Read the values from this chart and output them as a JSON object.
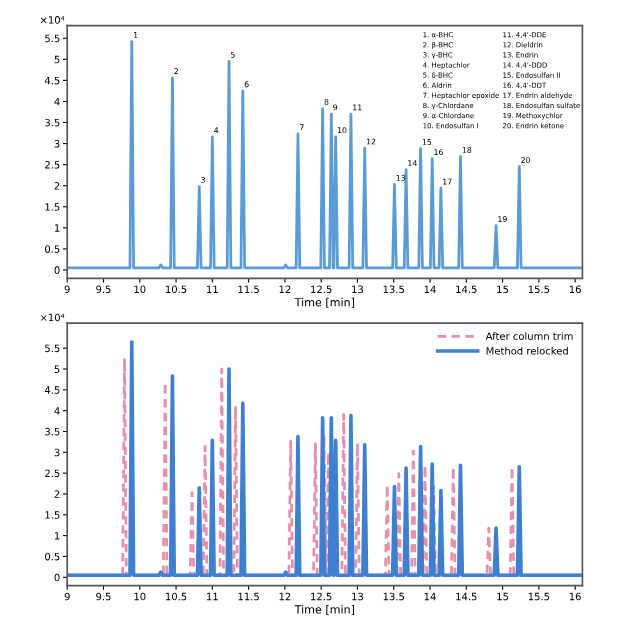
{
  "chart_data": [
    {
      "type": "line",
      "xlabel": "Time [min]",
      "xlim": [
        9,
        16.1
      ],
      "ylim": [
        -0.2,
        5.8
      ],
      "xticks": [
        9,
        9.5,
        10,
        10.5,
        11,
        11.5,
        12,
        12.5,
        13,
        13.5,
        14,
        14.5,
        15,
        15.5,
        16
      ],
      "yticks": [
        0,
        0.5,
        1,
        1.5,
        2,
        2.5,
        3,
        3.5,
        4,
        4.5,
        5,
        5.5
      ],
      "grid": false,
      "legend": false,
      "marker": "none",
      "ylabel": "×10⁴",
      "annotations": [
        "1. α-BHC",
        "2. β-BHC",
        "3. γ-BHC",
        "4. Heptachlor",
        "5. δ-BHC",
        "6. Aldrin",
        "7. Heptachlor epoxide",
        "8. γ-Chlordane",
        "9. α-Chlordane",
        "10. Endosulfan I",
        "11. 4,4'-DDE",
        "12. Dieldrin",
        "13. Endrin",
        "14. 4,4'-DDD",
        "15. Endosulfan II",
        "16. 4,4'-DDT",
        "17. Endrin aldehyde",
        "18. Endosulfan sulfate",
        "19. Methoxychlor",
        "20. Endrin ketone",
        {
          "text": "1",
          "x": 9.89,
          "y": 5.42
        },
        {
          "text": "2",
          "x": 10.45,
          "y": 4.56
        },
        {
          "text": "3",
          "x": 10.82,
          "y": 1.98
        },
        {
          "text": "4",
          "x": 11.0,
          "y": 3.16
        },
        {
          "text": "5",
          "x": 11.23,
          "y": 4.95
        },
        {
          "text": "6",
          "x": 11.42,
          "y": 4.25
        },
        {
          "text": "7",
          "x": 12.18,
          "y": 3.23
        },
        {
          "text": "8",
          "x": 12.52,
          "y": 3.83
        },
        {
          "text": "9",
          "x": 12.64,
          "y": 3.7
        },
        {
          "text": "10",
          "x": 12.7,
          "y": 3.16
        },
        {
          "text": "11",
          "x": 12.91,
          "y": 3.7
        },
        {
          "text": "12",
          "x": 13.1,
          "y": 2.89
        },
        {
          "text": "13",
          "x": 13.51,
          "y": 2.03
        },
        {
          "text": "14",
          "x": 13.67,
          "y": 2.38
        },
        {
          "text": "15",
          "x": 13.87,
          "y": 2.88
        },
        {
          "text": "16",
          "x": 14.03,
          "y": 2.64
        },
        {
          "text": "17",
          "x": 14.15,
          "y": 1.94
        },
        {
          "text": "18",
          "x": 14.42,
          "y": 2.69
        },
        {
          "text": "19",
          "x": 14.91,
          "y": 1.05
        },
        {
          "text": "20",
          "x": 15.23,
          "y": 2.45
        }
      ],
      "series": [
        {
          "color": "#5b9bd5",
          "line_style": "solid",
          "x": [
            9,
            9.865,
            9.89,
            9.915,
            10.265,
            10.29,
            10.315,
            10.425,
            10.45,
            10.475,
            10.795,
            10.82,
            10.845,
            10.975,
            11.0,
            11.025,
            11.205,
            11.23,
            11.255,
            11.395,
            11.42,
            11.445,
            11.985,
            12.01,
            12.035,
            12.155,
            12.18,
            12.205,
            12.495,
            12.52,
            12.545,
            12.615,
            12.64,
            12.665,
            12.675,
            12.7,
            12.725,
            12.885,
            12.91,
            12.935,
            13.075,
            13.1,
            13.125,
            13.485,
            13.51,
            13.535,
            13.645,
            13.67,
            13.695,
            13.845,
            13.87,
            13.895,
            14.005,
            14.03,
            14.055,
            14.125,
            14.15,
            14.175,
            14.395,
            14.42,
            14.445,
            14.885,
            14.91,
            14.935,
            15.205,
            15.23,
            15.255,
            16.1
          ],
          "values": [
            0.05,
            0.05,
            5.42,
            0.05,
            0.05,
            0.12,
            0.05,
            0.05,
            4.56,
            0.05,
            0.05,
            1.98,
            0.05,
            0.05,
            3.16,
            0.05,
            0.05,
            4.95,
            0.05,
            0.05,
            4.25,
            0.05,
            0.05,
            0.12,
            0.05,
            0.05,
            3.23,
            0.05,
            0.05,
            3.83,
            0.05,
            0.05,
            3.7,
            0.05,
            0.05,
            3.16,
            0.05,
            0.05,
            3.7,
            0.05,
            0.05,
            2.89,
            0.05,
            0.05,
            2.03,
            0.05,
            0.05,
            2.38,
            0.05,
            0.05,
            2.88,
            0.05,
            0.05,
            2.64,
            0.05,
            0.05,
            1.94,
            0.05,
            0.05,
            2.69,
            0.05,
            0.05,
            1.05,
            0.05,
            0.05,
            2.45,
            0.05,
            0.05
          ]
        }
      ]
    },
    {
      "type": "line",
      "xlabel": "Time [min]",
      "xlim": [
        9,
        16.1
      ],
      "ylim": [
        -0.2,
        6.1
      ],
      "xticks": [
        9,
        9.5,
        10,
        10.5,
        11,
        11.5,
        12,
        12.5,
        13,
        13.5,
        14,
        14.5,
        15,
        15.5,
        16
      ],
      "yticks": [
        0,
        0.5,
        1,
        1.5,
        2,
        2.5,
        3,
        3.5,
        4,
        4.5,
        5,
        5.5
      ],
      "grid": false,
      "legend": "top right",
      "marker": "none",
      "ylabel": "×10⁴",
      "series": [
        {
          "name": "After column trim",
          "color": "#e58fac",
          "line_style": "dashed",
          "x": [
            9,
            9.765,
            9.79,
            9.815,
            10.325,
            10.35,
            10.375,
            10.695,
            10.72,
            10.745,
            10.875,
            10.9,
            10.925,
            11.105,
            11.13,
            11.155,
            11.295,
            11.32,
            11.345,
            12.055,
            12.08,
            12.105,
            12.395,
            12.42,
            12.445,
            12.515,
            12.54,
            12.565,
            12.575,
            12.6,
            12.625,
            12.785,
            12.81,
            12.835,
            12.975,
            13.0,
            13.025,
            13.385,
            13.41,
            13.435,
            13.545,
            13.57,
            13.595,
            13.745,
            13.77,
            13.795,
            13.905,
            13.93,
            13.955,
            14.025,
            14.05,
            14.075,
            14.295,
            14.32,
            14.345,
            14.785,
            14.81,
            14.835,
            15.105,
            15.13,
            15.155,
            16.1
          ],
          "values": [
            0.05,
            0.05,
            5.26,
            0.05,
            0.05,
            4.68,
            0.05,
            0.05,
            2.03,
            0.05,
            0.05,
            3.14,
            0.05,
            0.05,
            5.0,
            0.05,
            0.05,
            4.11,
            0.05,
            0.05,
            3.26,
            0.05,
            0.05,
            3.2,
            0.05,
            0.05,
            3.4,
            0.05,
            0.05,
            3.0,
            0.05,
            0.05,
            3.91,
            0.05,
            0.05,
            3.22,
            0.05,
            0.05,
            2.22,
            0.05,
            0.05,
            2.49,
            0.05,
            0.05,
            3.03,
            0.05,
            0.05,
            2.69,
            0.05,
            0.05,
            2.18,
            0.05,
            0.05,
            2.65,
            0.05,
            0.05,
            1.18,
            0.05,
            0.05,
            2.65,
            0.05,
            0.05
          ]
        },
        {
          "name": "Method relocked",
          "color": "#3f7fcf",
          "line_style": "solid",
          "x": [
            9,
            9.865,
            9.89,
            9.915,
            10.265,
            10.29,
            10.315,
            10.425,
            10.45,
            10.475,
            10.795,
            10.82,
            10.845,
            10.975,
            11.0,
            11.025,
            11.205,
            11.23,
            11.255,
            11.395,
            11.42,
            11.445,
            11.985,
            12.01,
            12.035,
            12.155,
            12.18,
            12.205,
            12.495,
            12.52,
            12.545,
            12.615,
            12.64,
            12.665,
            12.675,
            12.7,
            12.725,
            12.885,
            12.91,
            12.935,
            13.075,
            13.1,
            13.125,
            13.485,
            13.51,
            13.535,
            13.645,
            13.67,
            13.695,
            13.845,
            13.87,
            13.895,
            14.005,
            14.03,
            14.055,
            14.125,
            14.15,
            14.175,
            14.395,
            14.42,
            14.445,
            14.885,
            14.91,
            14.935,
            15.205,
            15.23,
            15.255,
            16.1
          ],
          "values": [
            0.05,
            0.05,
            5.65,
            0.05,
            0.05,
            0.12,
            0.05,
            0.05,
            4.83,
            0.05,
            0.05,
            2.15,
            0.05,
            0.05,
            3.29,
            0.05,
            0.05,
            5.0,
            0.05,
            0.05,
            4.18,
            0.05,
            0.05,
            0.12,
            0.05,
            0.05,
            3.38,
            0.05,
            0.05,
            3.83,
            0.05,
            0.05,
            3.83,
            0.05,
            0.05,
            3.29,
            0.05,
            0.05,
            3.88,
            0.05,
            0.05,
            3.18,
            0.05,
            0.05,
            2.18,
            0.05,
            0.05,
            2.62,
            0.05,
            0.05,
            3.14,
            0.05,
            0.05,
            2.72,
            0.05,
            0.05,
            2.08,
            0.05,
            0.05,
            2.69,
            0.05,
            0.05,
            1.18,
            0.05,
            0.05,
            2.65,
            0.05,
            0.05
          ]
        }
      ]
    }
  ]
}
